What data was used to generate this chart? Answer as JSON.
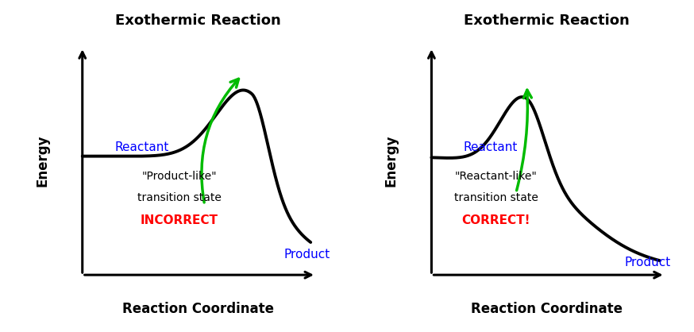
{
  "title": "Exothermic Reaction",
  "xlabel": "Reaction Coordinate",
  "ylabel": "Energy",
  "reactant_label": "Reactant",
  "product_label": "Product",
  "label_left_line1": "\"Product-like\"",
  "label_left_line2": "transition state",
  "label_left_line3": "INCORRECT",
  "label_right_line1": "\"Reactant-like\"",
  "label_right_line2": "transition state",
  "label_right_line3": "CORRECT!",
  "text_color_blue": "#0000FF",
  "text_color_red": "#FF0000",
  "text_color_black": "#000000",
  "curve_color": "#000000",
  "arrow_color": "#00BB00",
  "bg_color": "#FFFFFF",
  "title_fontsize": 13,
  "label_fontsize": 11,
  "axis_label_fontsize": 12,
  "annot_fontsize": 10,
  "incorrect_fontsize": 11
}
